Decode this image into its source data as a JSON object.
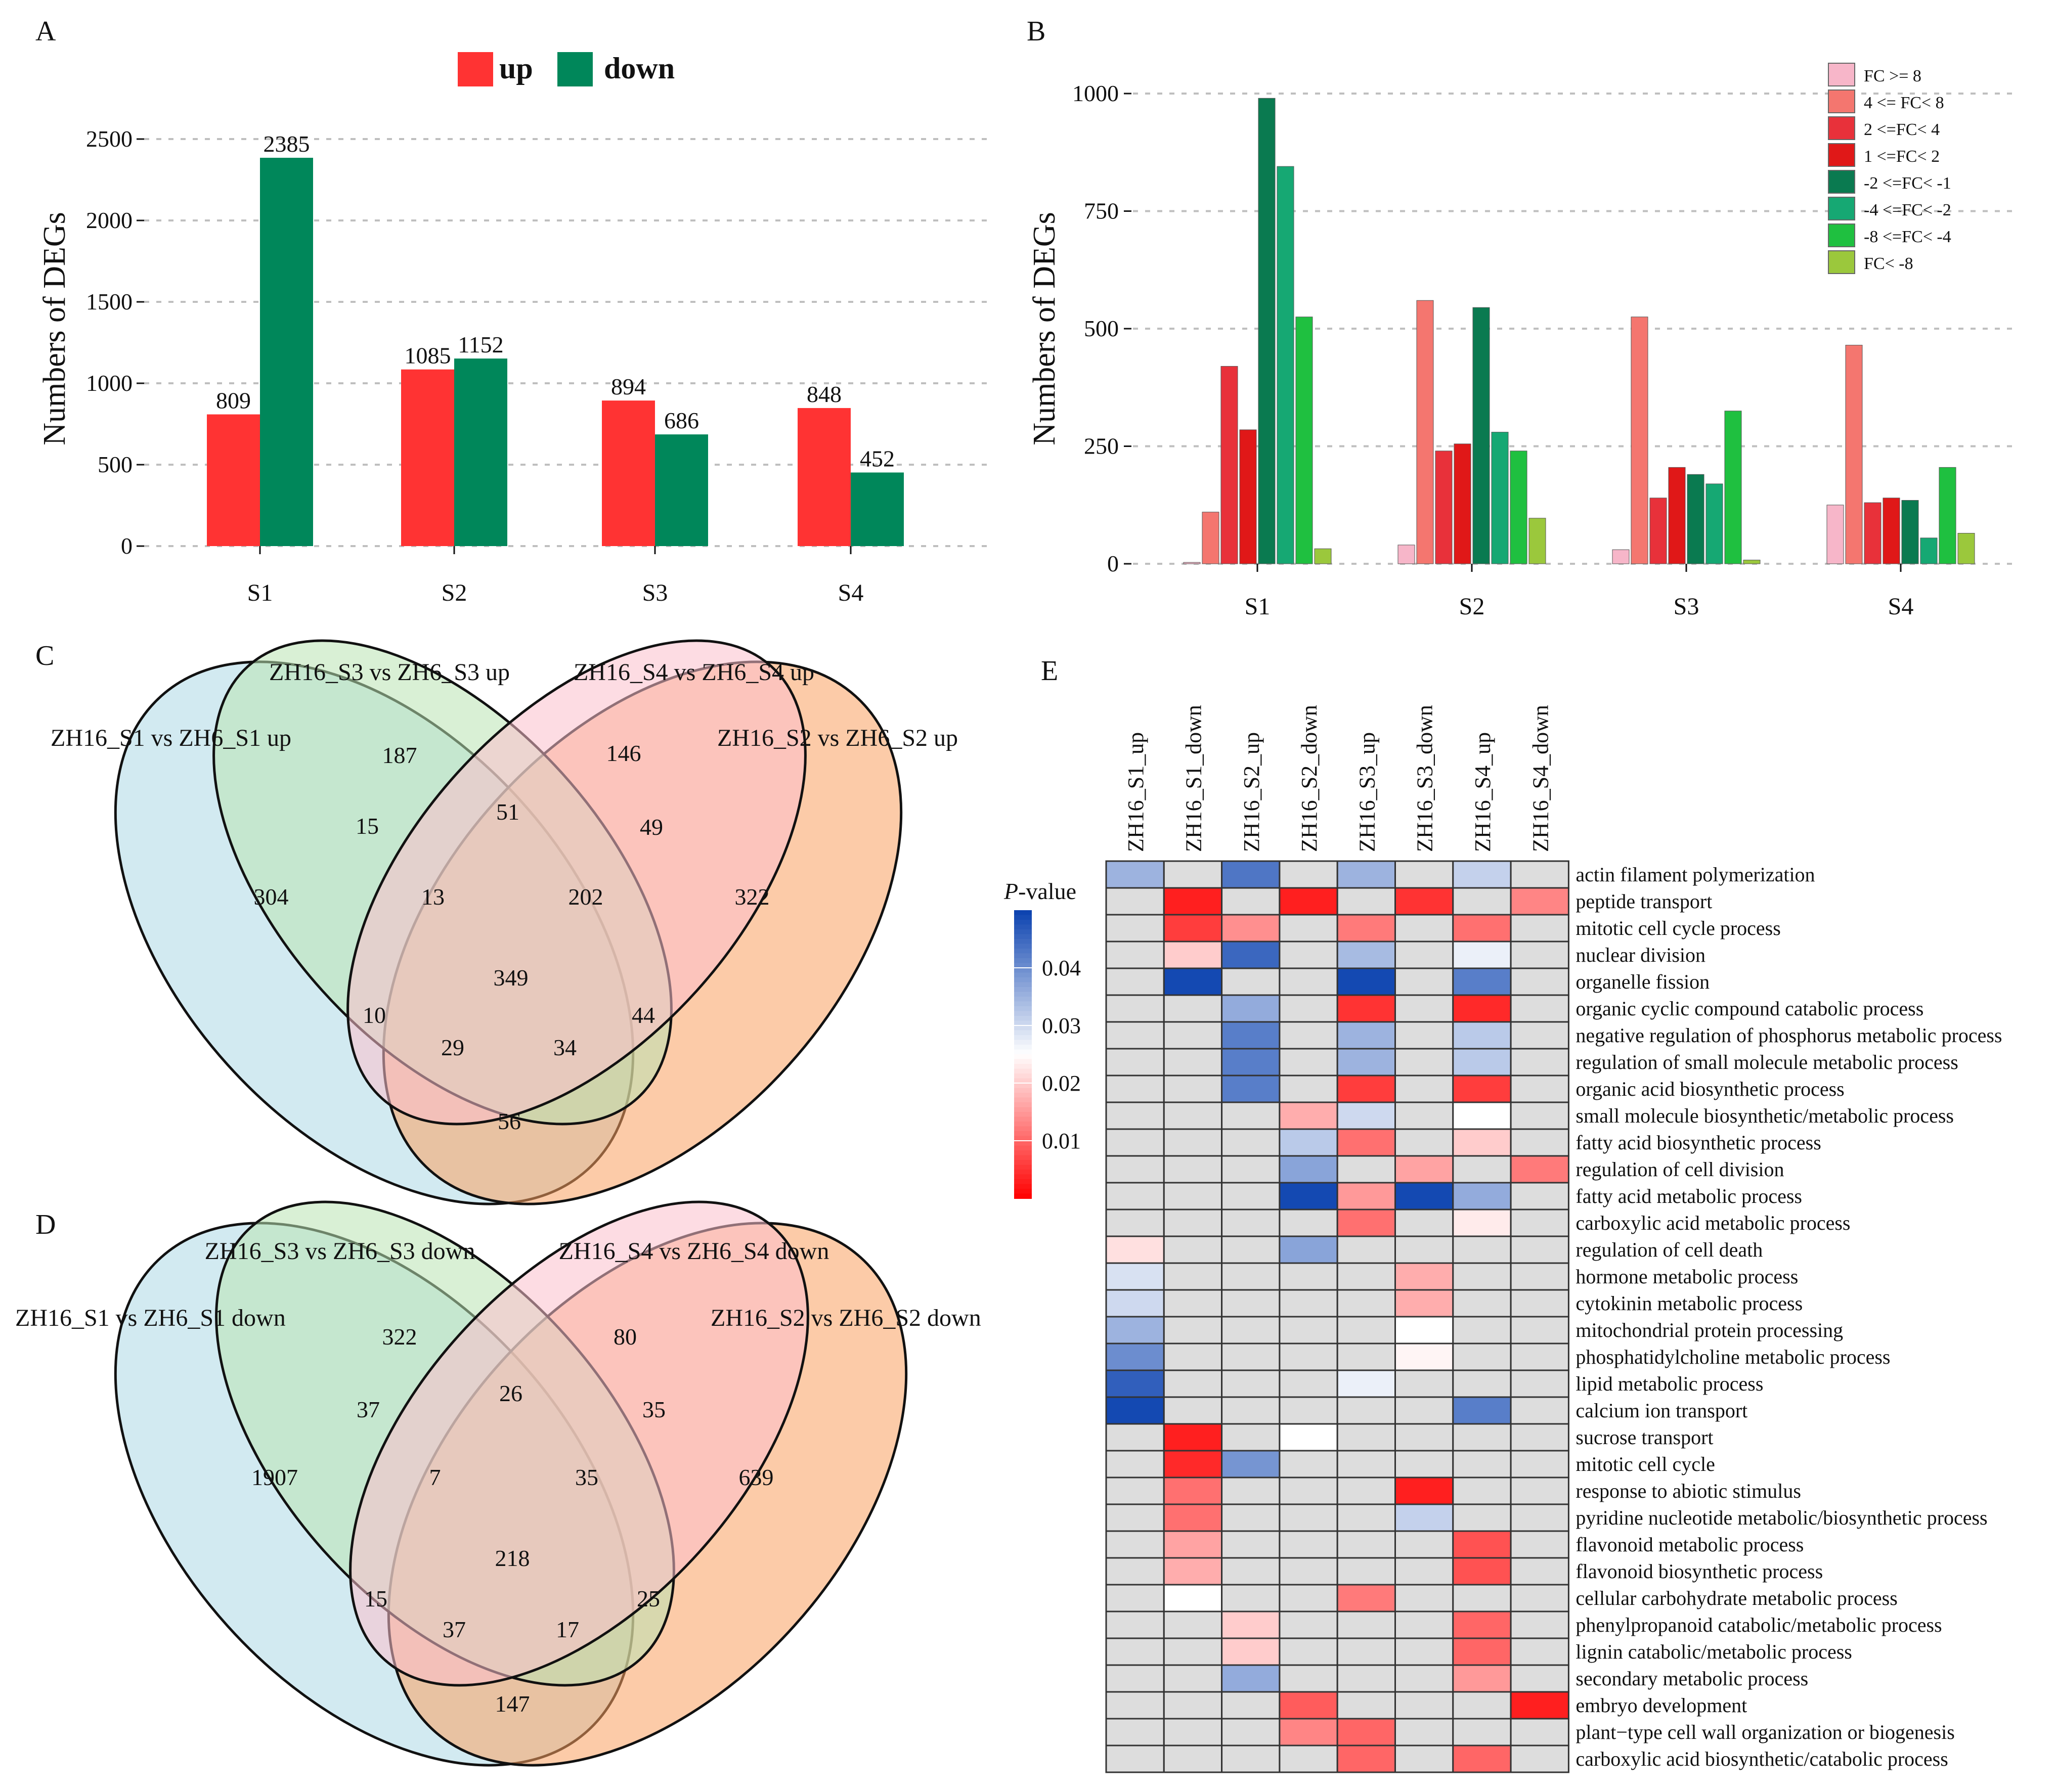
{
  "panel_labels": [
    "A",
    "B",
    "C",
    "D",
    "E"
  ],
  "chart_data": [
    {
      "panel": "A",
      "type": "bar",
      "categories": [
        "S1",
        "S2",
        "S3",
        "S4"
      ],
      "series": [
        {
          "name": "up",
          "values": [
            809,
            1085,
            894,
            848
          ],
          "color": "#ff3333"
        },
        {
          "name": "down",
          "values": [
            2385,
            1152,
            686,
            452
          ],
          "color": "#00875a"
        }
      ],
      "ylabel": "Numbers of DEGs",
      "ylim": [
        0,
        2600
      ],
      "yticks": [
        0,
        500,
        1000,
        1500,
        2000,
        2500
      ],
      "legend": "top-center",
      "grid": "horizontal dashed"
    },
    {
      "panel": "B",
      "type": "bar",
      "categories": [
        "S1",
        "S2",
        "S3",
        "S4"
      ],
      "series": [
        {
          "name": "FC >= 8",
          "values": [
            3,
            40,
            30,
            125
          ],
          "color": "#f7b6c9"
        },
        {
          "name": "4 <= FC< 8",
          "values": [
            110,
            560,
            525,
            465
          ],
          "color": "#f4766f"
        },
        {
          "name": "2 <=FC< 4",
          "values": [
            420,
            240,
            140,
            130
          ],
          "color": "#e8313a"
        },
        {
          "name": "1 <=FC< 2",
          "values": [
            285,
            255,
            205,
            140
          ],
          "color": "#e01818"
        },
        {
          "name": "-2 <=FC< -1",
          "values": [
            990,
            545,
            190,
            135
          ],
          "color": "#0a7a50"
        },
        {
          "name": "-4 <=FC< -2",
          "values": [
            845,
            280,
            170,
            55
          ],
          "color": "#16a873"
        },
        {
          "name": "-8 <=FC< -4",
          "values": [
            525,
            240,
            325,
            205
          ],
          "color": "#1fc040"
        },
        {
          "name": "FC< -8",
          "values": [
            32,
            97,
            8,
            65
          ],
          "color": "#9bc83c"
        }
      ],
      "ylabel": "Numbers of DEGs",
      "ylim": [
        0,
        1050
      ],
      "yticks": [
        0,
        250,
        500,
        750,
        1000
      ],
      "legend": "top-right"
    },
    {
      "panel": "C",
      "type": "venn",
      "sets": [
        "ZH16_S1 vs ZH6_S1 up",
        "ZH16_S3 vs ZH6_S3 up",
        "ZH16_S4 vs ZH6_S4 up",
        "ZH16_S2 vs ZH6_S2 up"
      ],
      "regions": {
        "A": 304,
        "B": 187,
        "C": 146,
        "D": 322,
        "AB": 15,
        "BC": 51,
        "CD": 49,
        "ABC": 13,
        "BCD": 202,
        "ABCD": 349,
        "AC": 10,
        "BD": 44,
        "ACD": 29,
        "ABD": 34,
        "AD": 56
      }
    },
    {
      "panel": "D",
      "type": "venn",
      "sets": [
        "ZH16_S1 vs ZH6_S1 down",
        "ZH16_S3 vs ZH6_S3 down",
        "ZH16_S4 vs ZH6_S4 down",
        "ZH16_S2 vs ZH6_S2 down"
      ],
      "regions": {
        "A": 1907,
        "B": 322,
        "C": 80,
        "D": 639,
        "AB": 37,
        "BC": 26,
        "CD": 35,
        "ABC": 7,
        "BCD": 35,
        "ABCD": 218,
        "AC": 15,
        "BD": 25,
        "ACD": 37,
        "ABD": 17,
        "AD": 147
      }
    },
    {
      "panel": "E",
      "type": "heatmap",
      "columns": [
        "ZH16_S1_up",
        "ZH16_S1_down",
        "ZH16_S2_up",
        "ZH16_S2_down",
        "ZH16_S3_up",
        "ZH16_S3_down",
        "ZH16_S4_up",
        "ZH16_S4_down"
      ],
      "rows": [
        "actin filament polymerization",
        "peptide transport",
        "mitotic cell cycle process",
        "nuclear division",
        "organelle fission",
        "organic cyclic compound catabolic process",
        "negative regulation of phosphorus metabolic process",
        "regulation of small molecule metabolic process",
        "organic acid biosynthetic process",
        "small molecule biosynthetic/metabolic process",
        "fatty acid biosynthetic process",
        "regulation of cell division",
        "fatty acid metabolic process",
        "carboxylic acid metabolic process",
        "regulation of cell death",
        "hormone metabolic process",
        "cytokinin metabolic process",
        "mitochondrial protein processing",
        "phosphatidylcholine metabolic process",
        "lipid metabolic process",
        "calcium ion transport",
        "sucrose transport",
        "mitotic cell cycle",
        "response to abiotic stimulus",
        "pyridine nucleotide metabolic/biosynthetic process",
        "flavonoid metabolic process",
        "flavonoid biosynthetic process",
        "cellular carbohydrate metabolic process",
        "phenylpropanoid catabolic/metabolic process",
        "lignin catabolic/metabolic process",
        "secondary metabolic process",
        "embryo development",
        "plant−type cell wall organization or biogenesis",
        "carboxylic acid biosynthetic/catabolic process"
      ],
      "values": [
        [
          0.035,
          null,
          0.043,
          null,
          0.035,
          null,
          0.031,
          null
        ],
        [
          null,
          0.003,
          null,
          0.003,
          null,
          0.005,
          null,
          0.013
        ],
        [
          null,
          0.006,
          0.014,
          null,
          0.012,
          null,
          0.011,
          null
        ],
        [
          null,
          0.02,
          0.045,
          null,
          0.034,
          null,
          0.027,
          null
        ],
        [
          null,
          0.049,
          null,
          null,
          0.049,
          null,
          0.042,
          null
        ],
        [
          null,
          null,
          0.036,
          null,
          0.005,
          null,
          0.004,
          null
        ],
        [
          null,
          null,
          0.042,
          null,
          0.035,
          null,
          0.032,
          null
        ],
        [
          null,
          null,
          0.042,
          null,
          0.035,
          null,
          0.032,
          null
        ],
        [
          null,
          null,
          0.042,
          null,
          0.006,
          null,
          0.006,
          null
        ],
        [
          null,
          null,
          null,
          0.017,
          0.03,
          null,
          0.025,
          null
        ],
        [
          null,
          null,
          null,
          0.032,
          0.011,
          null,
          0.02,
          null
        ],
        [
          null,
          null,
          null,
          0.037,
          null,
          0.016,
          null,
          0.012
        ],
        [
          null,
          null,
          null,
          0.049,
          0.015,
          0.049,
          0.036,
          null
        ],
        [
          null,
          null,
          null,
          null,
          0.011,
          null,
          0.023,
          null
        ],
        [
          0.022,
          null,
          null,
          0.037,
          null,
          null,
          null,
          null
        ],
        [
          0.029,
          null,
          null,
          null,
          null,
          0.017,
          null,
          null
        ],
        [
          0.03,
          null,
          null,
          null,
          null,
          0.017,
          null,
          null
        ],
        [
          0.035,
          null,
          null,
          null,
          null,
          0.025,
          null,
          null
        ],
        [
          0.04,
          null,
          null,
          null,
          null,
          0.024,
          null,
          null
        ],
        [
          0.046,
          null,
          null,
          null,
          0.027,
          null,
          null,
          null
        ],
        [
          0.049,
          null,
          null,
          null,
          null,
          null,
          0.042,
          null
        ],
        [
          null,
          0.003,
          null,
          0.025,
          null,
          null,
          null,
          null
        ],
        [
          null,
          0.004,
          0.039,
          null,
          null,
          null,
          null,
          null
        ],
        [
          null,
          0.011,
          null,
          null,
          null,
          0.003,
          null,
          null
        ],
        [
          null,
          0.011,
          null,
          null,
          null,
          0.031,
          null,
          null
        ],
        [
          null,
          0.016,
          null,
          null,
          null,
          null,
          0.008,
          null
        ],
        [
          null,
          0.017,
          null,
          null,
          null,
          null,
          0.008,
          null
        ],
        [
          null,
          0.025,
          null,
          null,
          0.012,
          null,
          null,
          null
        ],
        [
          null,
          null,
          0.02,
          null,
          null,
          null,
          0.01,
          null
        ],
        [
          null,
          null,
          0.02,
          null,
          null,
          null,
          0.01,
          null
        ],
        [
          null,
          null,
          0.036,
          null,
          null,
          null,
          0.015,
          null
        ],
        [
          null,
          null,
          null,
          0.009,
          null,
          null,
          null,
          0.003
        ],
        [
          null,
          null,
          null,
          0.013,
          0.01,
          null,
          null,
          null
        ],
        [
          null,
          null,
          null,
          null,
          0.01,
          null,
          0.01,
          null
        ]
      ],
      "na_color": "#dddddd",
      "legend": {
        "title_italic": "P",
        "title_rest": "-value",
        "ticks": [
          0.04,
          0.03,
          0.02,
          0.01
        ],
        "range": [
          0,
          0.05
        ]
      }
    }
  ]
}
